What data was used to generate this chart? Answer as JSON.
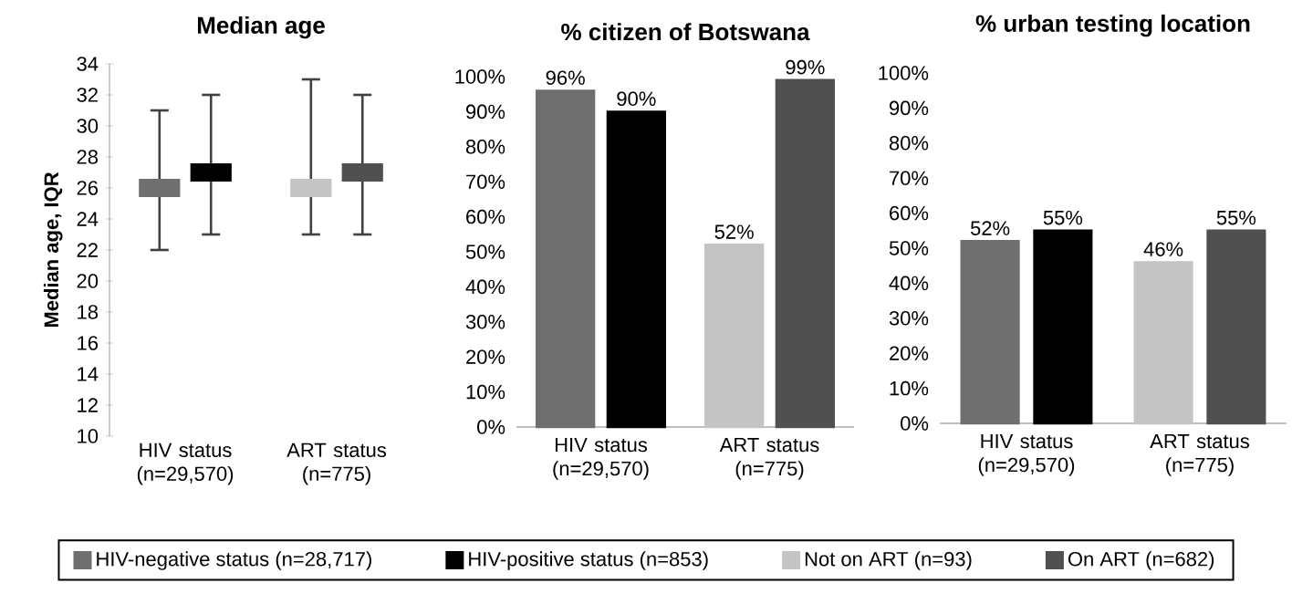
{
  "chart_data": [
    {
      "type": "scatter",
      "title": "Median age",
      "ylabel": "Median age, IQR",
      "categories": [
        "HIV status (n=29,570)",
        "ART status (n=775)"
      ],
      "marker": "square",
      "legend": "bottom",
      "ylim": [
        10,
        34
      ],
      "yticks": [
        10,
        12,
        14,
        16,
        18,
        20,
        22,
        24,
        26,
        28,
        30,
        32,
        34
      ],
      "series": [
        {
          "name": "HIV-negative status (n=28,717)",
          "color": "#6f6f6f",
          "values": [
            26,
            null
          ],
          "errors": [
            [
              22,
              31
            ],
            null
          ]
        },
        {
          "name": "HIV-positive status (n=853)",
          "color": "#000000",
          "values": [
            27,
            null
          ],
          "errors": [
            [
              23,
              32
            ],
            null
          ]
        },
        {
          "name": "Not on ART (n=93)",
          "color": "#c4c4c4",
          "values": [
            null,
            26
          ],
          "errors": [
            null,
            [
              23,
              33
            ]
          ]
        },
        {
          "name": "On ART (n=682)",
          "color": "#505050",
          "values": [
            null,
            27
          ],
          "errors": [
            null,
            [
              23,
              32
            ]
          ]
        }
      ]
    },
    {
      "type": "bar",
      "title": "% citizen of Botswana",
      "categories": [
        "HIV status (n=29,570)",
        "ART status (n=775)"
      ],
      "ylim": [
        0,
        100
      ],
      "yticks": [
        {
          "value": 0,
          "label": "0%"
        },
        {
          "value": 10,
          "label": "10%"
        },
        {
          "value": 20,
          "label": "20%"
        },
        {
          "value": 30,
          "label": "30%"
        },
        {
          "value": 40,
          "label": "40%"
        },
        {
          "value": 50,
          "label": "50%"
        },
        {
          "value": 60,
          "label": "60%"
        },
        {
          "value": 70,
          "label": "70%"
        },
        {
          "value": 80,
          "label": "80%"
        },
        {
          "value": 90,
          "label": "90%"
        },
        {
          "value": 100,
          "label": "100%"
        }
      ],
      "series": [
        {
          "color": "#6f6f6f",
          "values": [
            96,
            null
          ],
          "value_labels": [
            "96%",
            null
          ]
        },
        {
          "color": "#000000",
          "values": [
            90,
            null
          ],
          "value_labels": [
            "90%",
            null
          ]
        },
        {
          "color": "#c4c4c4",
          "values": [
            null,
            52
          ],
          "value_labels": [
            null,
            "52%"
          ]
        },
        {
          "color": "#505050",
          "values": [
            null,
            99
          ],
          "value_labels": [
            null,
            "99%"
          ]
        }
      ]
    },
    {
      "type": "bar",
      "title": "% urban testing location",
      "categories": [
        "HIV status (n=29,570)",
        "ART status (n=775)"
      ],
      "ylim": [
        0,
        100
      ],
      "yticks": [
        {
          "value": 0,
          "label": "0%"
        },
        {
          "value": 10,
          "label": "10%"
        },
        {
          "value": 20,
          "label": "20%"
        },
        {
          "value": 30,
          "label": "30%"
        },
        {
          "value": 40,
          "label": "40%"
        },
        {
          "value": 50,
          "label": "50%"
        },
        {
          "value": 60,
          "label": "60%"
        },
        {
          "value": 70,
          "label": "70%"
        },
        {
          "value": 80,
          "label": "80%"
        },
        {
          "value": 90,
          "label": "90%"
        },
        {
          "value": 100,
          "label": "100%"
        }
      ],
      "series": [
        {
          "color": "#6f6f6f",
          "values": [
            52,
            null
          ],
          "value_labels": [
            "52%",
            null
          ]
        },
        {
          "color": "#000000",
          "values": [
            55,
            null
          ],
          "value_labels": [
            "55%",
            null
          ]
        },
        {
          "color": "#c4c4c4",
          "values": [
            null,
            46
          ],
          "value_labels": [
            null,
            "46%"
          ]
        },
        {
          "color": "#505050",
          "values": [
            null,
            55
          ],
          "value_labels": [
            null,
            "55%"
          ]
        }
      ]
    }
  ]
}
